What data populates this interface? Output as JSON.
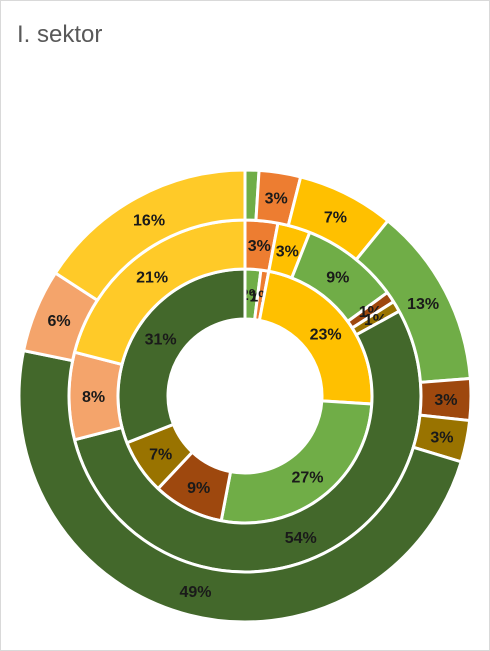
{
  "chart_data": {
    "type": "donut",
    "title": "I. sektor",
    "rings": [
      {
        "name": "",
        "segments": [
          {
            "value": 2,
            "label": "2%",
            "color": "#70ad47"
          },
          {
            "value": 1,
            "label": "1%",
            "color": "#ed7d31"
          },
          {
            "value": 23,
            "label": "23%",
            "color": "#ffc000"
          },
          {
            "value": 27,
            "label": "27%",
            "color": "#70ad47"
          },
          {
            "value": 9,
            "label": "9%",
            "color": "#9e480e"
          },
          {
            "value": 7,
            "label": "7%",
            "color": "#997300"
          },
          {
            "value": 31,
            "label": "31%",
            "color": "#43682b"
          }
        ]
      },
      {
        "name": "",
        "segments": [
          {
            "value": 3,
            "label": "3%",
            "color": "#ed7d31"
          },
          {
            "value": 3,
            "label": "3%",
            "color": "#ffc000"
          },
          {
            "value": 9,
            "label": "9%",
            "color": "#70ad47"
          },
          {
            "value": 1,
            "label": "1%",
            "color": "#9e480e"
          },
          {
            "value": 1,
            "label": "1%",
            "color": "#997300"
          },
          {
            "value": 54,
            "label": "54%",
            "color": "#43682b"
          },
          {
            "value": 8,
            "label": "8%",
            "color": "#f4a46b"
          },
          {
            "value": 21,
            "label": "21%",
            "color": "#ffca28"
          }
        ]
      },
      {
        "name": "",
        "segments": [
          {
            "value": 1,
            "label": "",
            "color": "#70ad47"
          },
          {
            "value": 3,
            "label": "3%",
            "color": "#ed7d31"
          },
          {
            "value": 7,
            "label": "7%",
            "color": "#ffc000"
          },
          {
            "value": 13,
            "label": "13%",
            "color": "#70ad47"
          },
          {
            "value": 3,
            "label": "3%",
            "color": "#9e480e"
          },
          {
            "value": 3,
            "label": "3%",
            "color": "#997300"
          },
          {
            "value": 49,
            "label": "49%",
            "color": "#43682b"
          },
          {
            "value": 6,
            "label": "6%",
            "color": "#f4a46b"
          },
          {
            "value": 16,
            "label": "16%",
            "color": "#ffca28"
          }
        ]
      }
    ]
  }
}
